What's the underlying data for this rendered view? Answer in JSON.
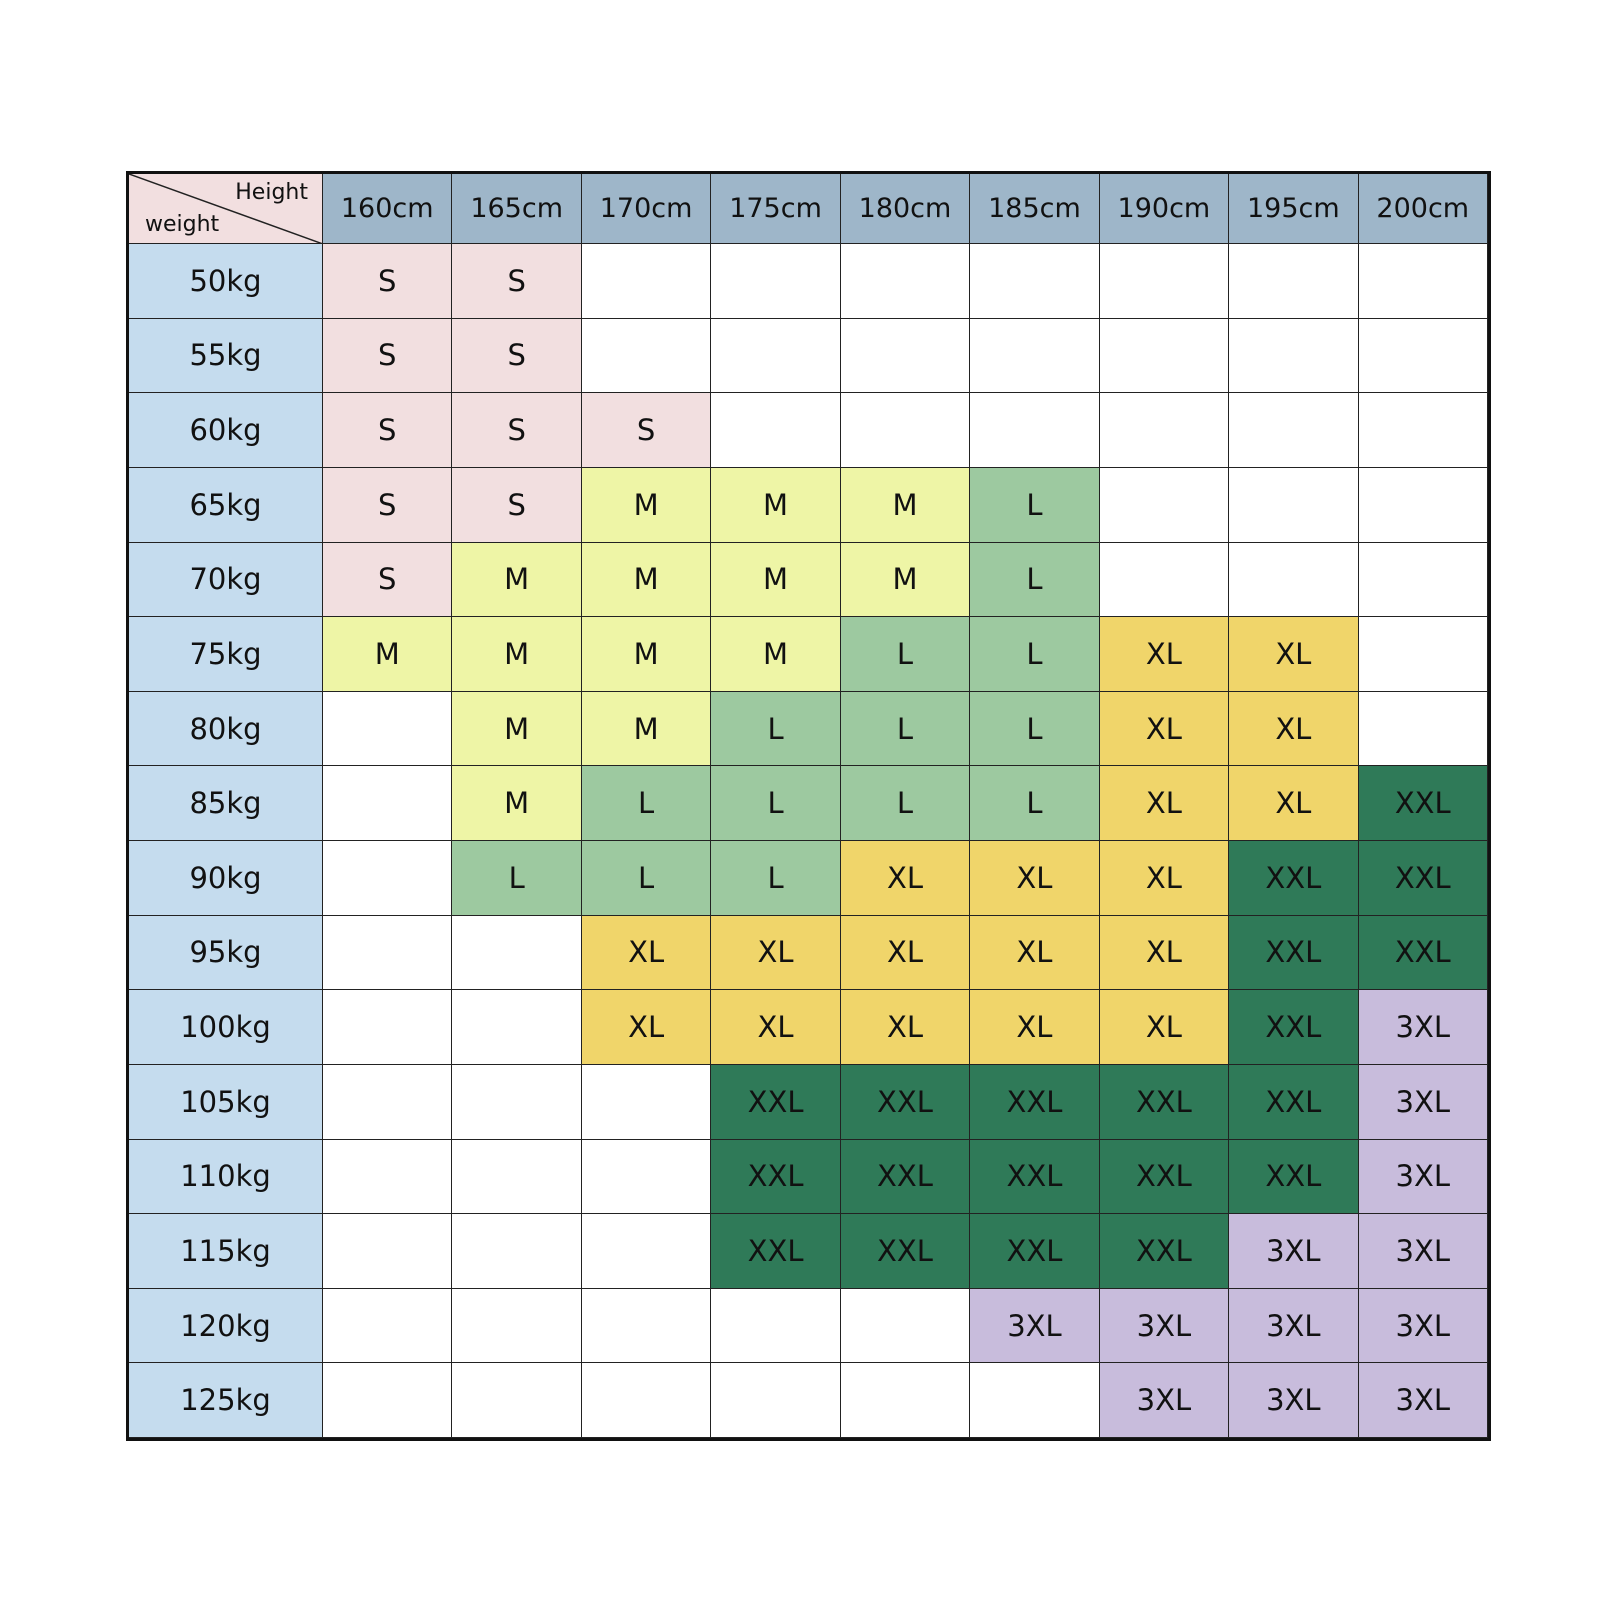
{
  "table": {
    "corner": {
      "column_label": "Height",
      "row_label": "weight"
    },
    "columns": [
      "160cm",
      "165cm",
      "170cm",
      "175cm",
      "180cm",
      "185cm",
      "190cm",
      "195cm",
      "200cm"
    ],
    "rows": [
      {
        "label": "50kg",
        "cells": [
          "S",
          "S",
          null,
          null,
          null,
          null,
          null,
          null,
          null
        ]
      },
      {
        "label": "55kg",
        "cells": [
          "S",
          "S",
          null,
          null,
          null,
          null,
          null,
          null,
          null
        ]
      },
      {
        "label": "60kg",
        "cells": [
          "S",
          "S",
          "S",
          null,
          null,
          null,
          null,
          null,
          null
        ]
      },
      {
        "label": "65kg",
        "cells": [
          "S",
          "S",
          "M",
          "M",
          "M",
          "L",
          null,
          null,
          null
        ]
      },
      {
        "label": "70kg",
        "cells": [
          "S",
          "M",
          "M",
          "M",
          "M",
          "L",
          null,
          null,
          null
        ]
      },
      {
        "label": "75kg",
        "cells": [
          "M",
          "M",
          "M",
          "M",
          "L",
          "L",
          "XL",
          "XL",
          null
        ]
      },
      {
        "label": "80kg",
        "cells": [
          null,
          "M",
          "M",
          "L",
          "L",
          "L",
          "XL",
          "XL",
          null
        ]
      },
      {
        "label": "85kg",
        "cells": [
          null,
          "M",
          "L",
          "L",
          "L",
          "L",
          "XL",
          "XL",
          "XXL"
        ]
      },
      {
        "label": "90kg",
        "cells": [
          null,
          "L",
          "L",
          "L",
          "XL",
          "XL",
          "XL",
          "XXL",
          "XXL"
        ]
      },
      {
        "label": "95kg",
        "cells": [
          null,
          null,
          "XL",
          "XL",
          "XL",
          "XL",
          "XL",
          "XXL",
          "XXL"
        ]
      },
      {
        "label": "100kg",
        "cells": [
          null,
          null,
          "XL",
          "XL",
          "XL",
          "XL",
          "XL",
          "XXL",
          "3XL"
        ]
      },
      {
        "label": "105kg",
        "cells": [
          null,
          null,
          null,
          "XXL",
          "XXL",
          "XXL",
          "XXL",
          "XXL",
          "3XL"
        ]
      },
      {
        "label": "110kg",
        "cells": [
          null,
          null,
          null,
          "XXL",
          "XXL",
          "XXL",
          "XXL",
          "XXL",
          "3XL"
        ]
      },
      {
        "label": "115kg",
        "cells": [
          null,
          null,
          null,
          "XXL",
          "XXL",
          "XXL",
          "XXL",
          "3XL",
          "3XL"
        ]
      },
      {
        "label": "120kg",
        "cells": [
          null,
          null,
          null,
          null,
          null,
          "3XL",
          "3XL",
          "3XL",
          "3XL"
        ]
      },
      {
        "label": "125kg",
        "cells": [
          null,
          null,
          null,
          null,
          null,
          null,
          "3XL",
          "3XL",
          "3XL"
        ]
      }
    ],
    "size_colors": {
      "S": "#f2dfe0",
      "M": "#eef5a6",
      "L": "#9dc9a0",
      "XL": "#f0d56a",
      "XXL": "#2f7a58",
      "3XL": "#c8bcdc"
    }
  }
}
